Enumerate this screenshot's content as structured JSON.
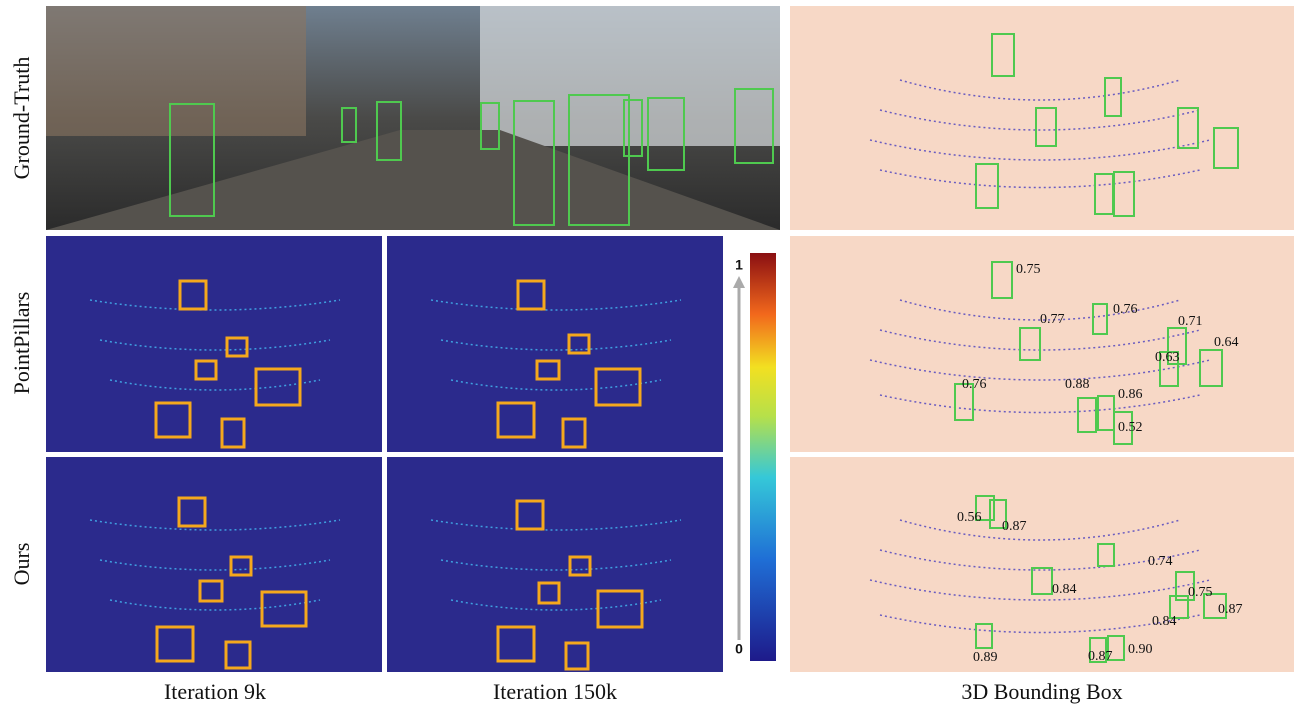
{
  "row_labels": [
    "Ground-Truth",
    "PointPillars",
    "Ours"
  ],
  "column_labels": [
    "Iteration 9k",
    "Iteration 150k",
    "3D Bounding Box"
  ],
  "colorbar": {
    "max_label": "1",
    "min_label": "0"
  },
  "scores": {
    "pointpillars": [
      "0.75",
      "0.76",
      "0.77",
      "0.71",
      "0.63",
      "0.64",
      "0.76",
      "0.88",
      "0.86",
      "0.52"
    ],
    "ours": [
      "0.56",
      "0.87",
      "0.74",
      "0.84",
      "0.75",
      "0.87",
      "0.84",
      "0.89",
      "0.87",
      "0.90"
    ]
  }
}
